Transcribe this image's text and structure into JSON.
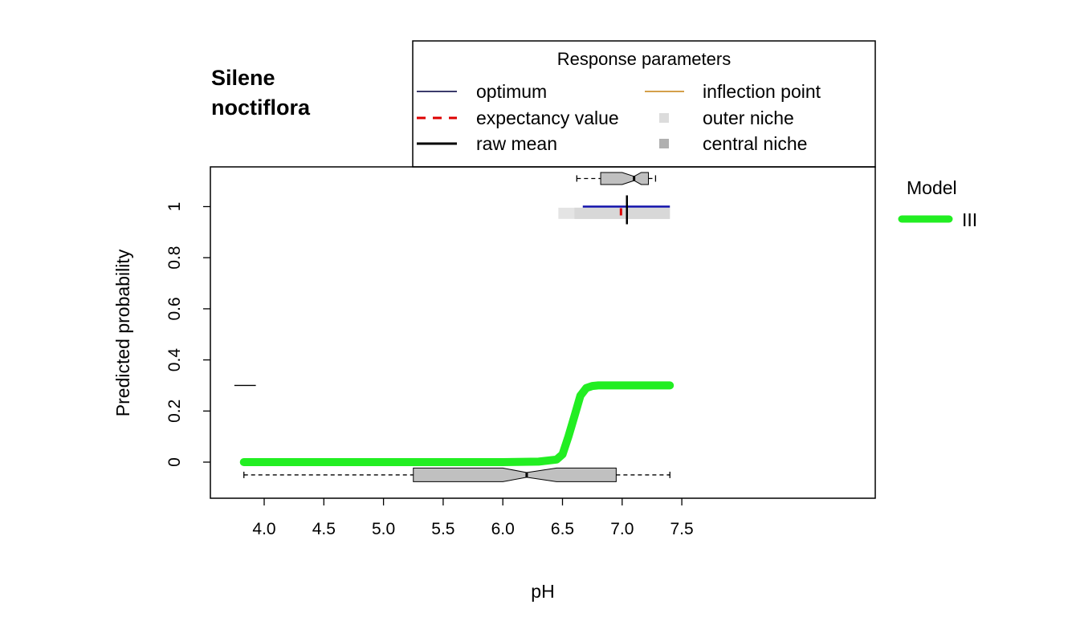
{
  "title_lines": [
    "Silene",
    "noctiflora"
  ],
  "legend_params": {
    "title": "Response parameters",
    "items": [
      {
        "label": "optimum",
        "color": "#3b3b6b",
        "style": "line"
      },
      {
        "label": "expectancy value",
        "color": "#dd0000",
        "style": "dashed"
      },
      {
        "label": "raw mean",
        "color": "#000000",
        "style": "line"
      },
      {
        "label": "inflection point",
        "color": "#d4a04a",
        "style": "line"
      },
      {
        "label": "outer niche",
        "color": "#dcdcdc",
        "style": "square"
      },
      {
        "label": "central niche",
        "color": "#b0b0b0",
        "style": "square"
      }
    ]
  },
  "legend_model": {
    "title": "Model",
    "items": [
      {
        "label": "III",
        "color": "#22ee22"
      }
    ]
  },
  "colors": {
    "curve": "#22ee22",
    "optimum": "#1010aa",
    "expectancy": "#dd0000",
    "outer_niche": "#e4e4e4",
    "box_fill": "#c0c0c0"
  },
  "chart_data": {
    "type": "line",
    "title": "Silene noctiflora",
    "xlabel": "pH",
    "ylabel": "Predicted probability",
    "xlim": [
      3.75,
      7.5
    ],
    "ylim": [
      -0.14,
      1.15
    ],
    "xticks": [
      4.0,
      4.5,
      5.0,
      5.5,
      6.0,
      6.5,
      7.0,
      7.5
    ],
    "xtick_labels": [
      "4.0",
      "4.5",
      "5.0",
      "5.5",
      "6.0",
      "6.5",
      "7.0",
      "7.5"
    ],
    "yticks": [
      0,
      0.2,
      0.4,
      0.6,
      0.8,
      1
    ],
    "ytick_labels": [
      "0",
      "0.2",
      "0.4",
      "0.6",
      "0.8",
      "1"
    ],
    "series": [
      {
        "name": "III",
        "x": [
          3.83,
          4.0,
          4.5,
          5.0,
          5.5,
          6.0,
          6.3,
          6.45,
          6.5,
          6.55,
          6.6,
          6.65,
          6.7,
          6.75,
          6.8,
          7.0,
          7.2,
          7.4
        ],
        "y": [
          0.0,
          0.0,
          0.0,
          0.0,
          0.0,
          0.0,
          0.002,
          0.01,
          0.03,
          0.1,
          0.18,
          0.26,
          0.29,
          0.298,
          0.3,
          0.3,
          0.3,
          0.3
        ]
      }
    ],
    "rug": {
      "x_range": [
        3.75,
        3.93
      ],
      "y": 0.3
    },
    "boxplot_all": {
      "y": -0.05,
      "whisker_low": 3.83,
      "q1": 5.25,
      "median": 6.2,
      "q3": 6.95,
      "whisker_high": 7.4,
      "notch_low": 6.0,
      "notch_high": 6.45
    },
    "boxplot_presence": {
      "y": 1.11,
      "whisker_low": 6.62,
      "q1": 6.82,
      "median": 7.1,
      "q3": 7.22,
      "whisker_high": 7.28,
      "notch_low": 7.0,
      "notch_high": 7.16
    },
    "response_parameters": {
      "y": 0.98,
      "outer_niche": [
        6.58,
        7.4
      ],
      "central_niche": [
        6.6,
        7.4
      ],
      "optimum_range": [
        6.67,
        7.4
      ],
      "expectancy_value": 6.99,
      "raw_mean": 7.04
    }
  }
}
